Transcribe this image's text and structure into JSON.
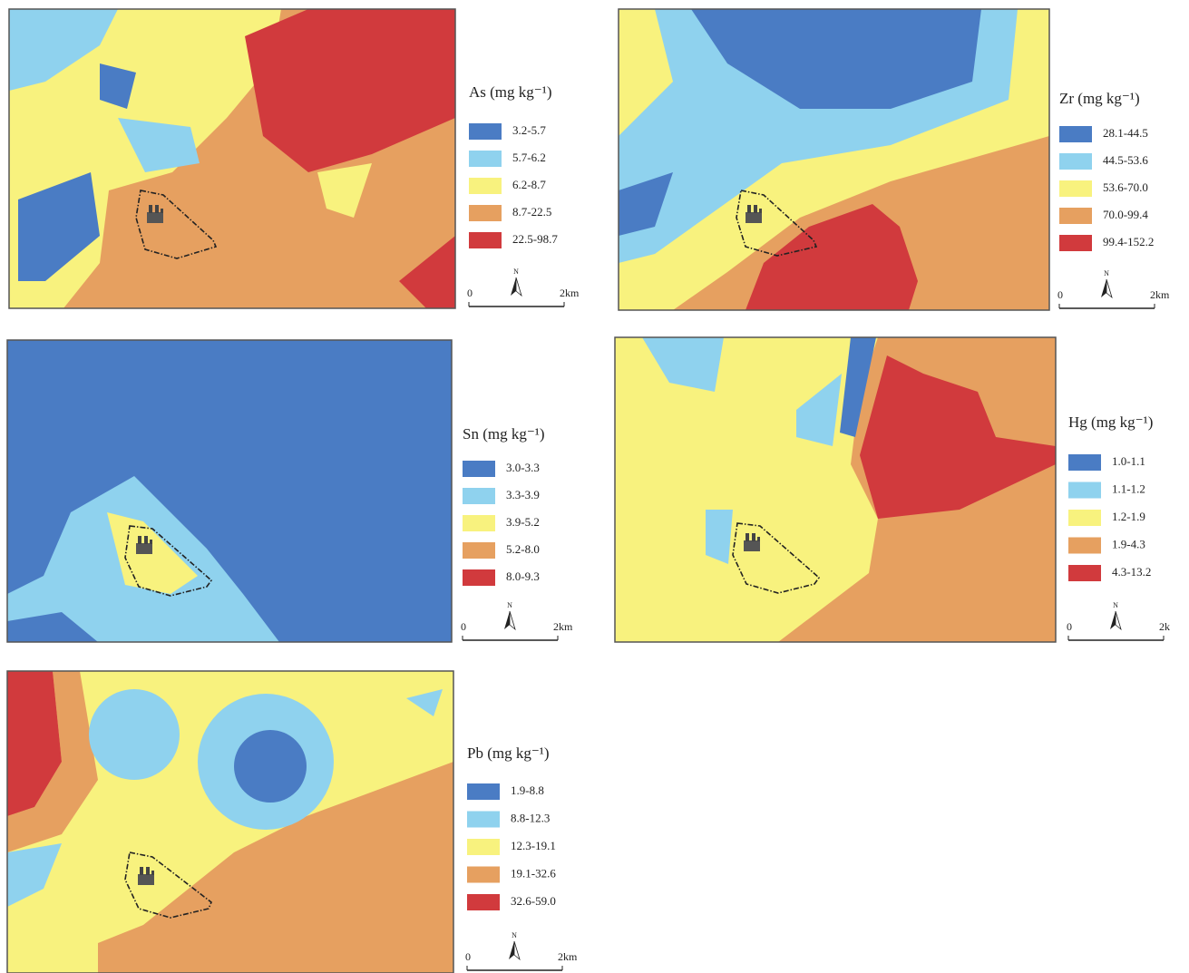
{
  "colors": [
    "#4a7cc4",
    "#8fd2ee",
    "#f8f27e",
    "#e6a060",
    "#d13a3d"
  ],
  "panels": [
    {
      "title": "As (mg kg⁻¹)",
      "classes": [
        "3.2-5.7",
        "5.7-6.2",
        "6.2-8.7",
        "8.7-22.5",
        "22.5-98.7"
      ],
      "north": "N",
      "scale_start": "0",
      "scale_end": "2km"
    },
    {
      "title": "Zr (mg kg⁻¹)",
      "classes": [
        "28.1-44.5",
        "44.5-53.6",
        "53.6-70.0",
        "70.0-99.4",
        "99.4-152.2"
      ],
      "north": "N",
      "scale_start": "0",
      "scale_end": "2km"
    },
    {
      "title": "Sn (mg kg⁻¹)",
      "classes": [
        "3.0-3.3",
        "3.3-3.9",
        "3.9-5.2",
        "5.2-8.0",
        "8.0-9.3"
      ],
      "north": "N",
      "scale_start": "0",
      "scale_end": "2km"
    },
    {
      "title": "Hg (mg kg⁻¹)",
      "classes": [
        "1.0-1.1",
        "1.1-1.2",
        "1.2-1.9",
        "1.9-4.3",
        "4.3-13.2"
      ],
      "north": "N",
      "scale_start": "0",
      "scale_end": "2k"
    },
    {
      "title": "Pb (mg kg⁻¹)",
      "classes": [
        "1.9-8.8",
        "8.8-12.3",
        "12.3-19.1",
        "19.1-32.6",
        "32.6-59.0"
      ],
      "north": "N",
      "scale_start": "0",
      "scale_end": "2km"
    }
  ]
}
